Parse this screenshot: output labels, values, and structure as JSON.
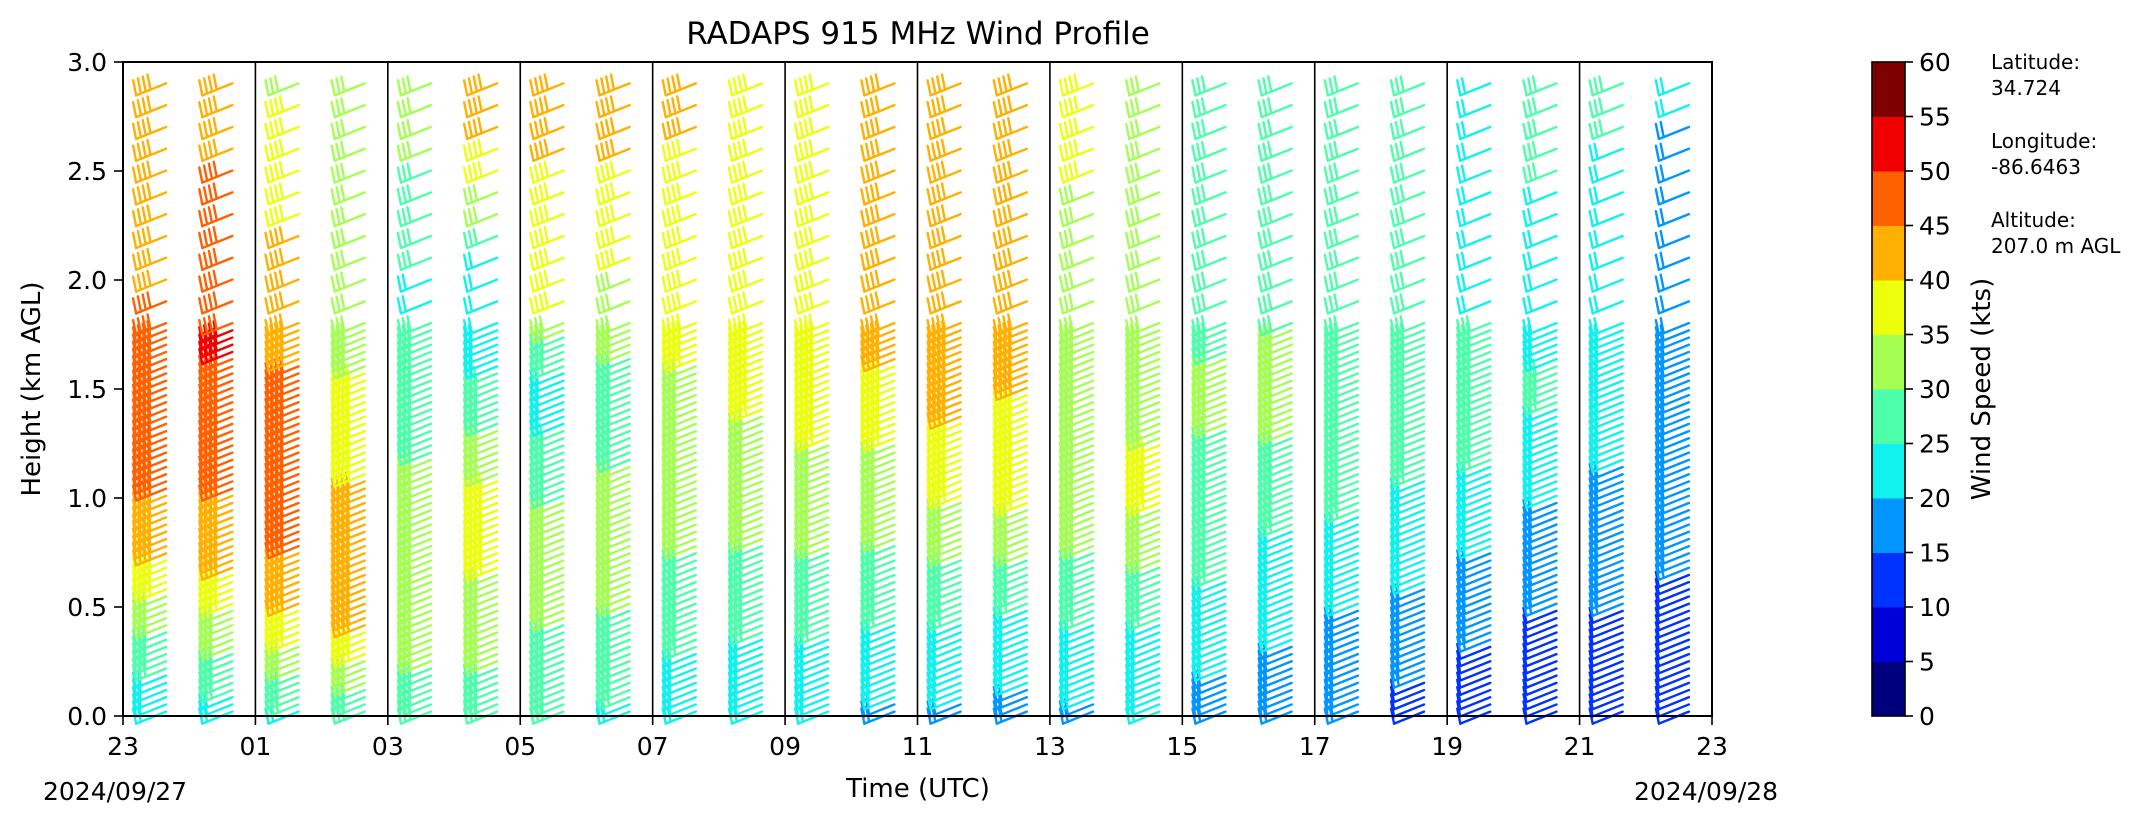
{
  "chart_data": {
    "type": "wind-barb-time-height",
    "title": "RADAPS 915 MHz Wind Profile",
    "xlabel": "Time (UTC)",
    "ylabel": "Height (km AGL)",
    "x_ticks": [
      "23",
      "01",
      "03",
      "05",
      "07",
      "09",
      "11",
      "13",
      "15",
      "17",
      "19",
      "21",
      "23"
    ],
    "x_tick_hours": [
      0,
      2,
      4,
      6,
      8,
      10,
      12,
      14,
      16,
      18,
      20,
      22,
      24
    ],
    "date_start": "2024/09/27",
    "date_end": "2024/09/28",
    "y_ticks": [
      "0.0",
      "0.5",
      "1.0",
      "1.5",
      "2.0",
      "2.5",
      "3.0"
    ],
    "ylim": [
      0,
      3
    ],
    "xlim_hours_since_start": [
      0,
      24
    ],
    "hour_dividers": true,
    "colorbar": {
      "label": "Wind Speed (kts)",
      "ticks": [
        "0",
        "5",
        "10",
        "15",
        "20",
        "25",
        "30",
        "35",
        "40",
        "45",
        "50",
        "55",
        "60"
      ],
      "colors": [
        "#00007f",
        "#0000d9",
        "#0033ff",
        "#0095ff",
        "#0ff2ee",
        "#4dffaa",
        "#a4ff53",
        "#ecff0b",
        "#ffb000",
        "#ff6000",
        "#f00000",
        "#7f0000"
      ]
    },
    "station": {
      "latitude_label": "Latitude:",
      "latitude": "34.724",
      "longitude_label": "Longitude:",
      "longitude": "-86.6463",
      "altitude_label": "Altitude:",
      "altitude": "207.0 m AGL"
    },
    "profile_columns_hours": [
      0.5,
      1.5,
      2.5,
      3.5,
      4.5,
      5.5,
      6.5,
      7.5,
      8.5,
      9.5,
      10.5,
      11.5,
      12.5,
      13.5,
      14.5,
      15.5,
      16.5,
      17.5,
      18.5,
      19.5,
      20.5,
      21.5,
      22.5,
      23.5
    ],
    "speed_profiles_kts": [
      [
        [
          0,
          20
        ],
        [
          0.5,
          33
        ],
        [
          0.8,
          42
        ],
        [
          1.1,
          46
        ],
        [
          1.6,
          46
        ],
        [
          2.0,
          45
        ],
        [
          3.0,
          40
        ]
      ],
      [
        [
          0,
          22
        ],
        [
          0.5,
          35
        ],
        [
          0.8,
          44
        ],
        [
          1.5,
          47
        ],
        [
          1.7,
          51
        ],
        [
          2.0,
          48
        ],
        [
          3.0,
          43
        ]
      ],
      [
        [
          0,
          24
        ],
        [
          0.5,
          40
        ],
        [
          0.8,
          46
        ],
        [
          1.5,
          46
        ],
        [
          2.0,
          42
        ],
        [
          3.0,
          34
        ]
      ],
      [
        [
          0,
          25
        ],
        [
          0.4,
          40
        ],
        [
          0.8,
          45
        ],
        [
          1.2,
          38
        ],
        [
          2.0,
          32
        ],
        [
          3.0,
          33
        ]
      ],
      [
        [
          0,
          26
        ],
        [
          0.5,
          34
        ],
        [
          1.0,
          32
        ],
        [
          1.5,
          27
        ],
        [
          2.0,
          24
        ],
        [
          3.0,
          34
        ]
      ],
      [
        [
          0,
          26
        ],
        [
          0.5,
          34
        ],
        [
          1.0,
          37
        ],
        [
          1.5,
          26
        ],
        [
          2.0,
          21
        ],
        [
          2.5,
          38
        ],
        [
          3.0,
          43
        ]
      ],
      [
        [
          0,
          25
        ],
        [
          0.5,
          31
        ],
        [
          1.0,
          30
        ],
        [
          1.5,
          22
        ],
        [
          1.9,
          35
        ],
        [
          3.0,
          44
        ]
      ],
      [
        [
          0,
          24
        ],
        [
          0.5,
          30
        ],
        [
          1.0,
          31
        ],
        [
          1.5,
          28
        ],
        [
          2.0,
          34
        ],
        [
          3.0,
          45
        ]
      ],
      [
        [
          0,
          20
        ],
        [
          0.5,
          28
        ],
        [
          1.0,
          32
        ],
        [
          1.5,
          34
        ],
        [
          2.0,
          38
        ],
        [
          3.0,
          41
        ]
      ],
      [
        [
          0,
          20
        ],
        [
          0.5,
          27
        ],
        [
          1.0,
          32
        ],
        [
          1.5,
          36
        ],
        [
          2.0,
          38
        ],
        [
          3.0,
          40
        ]
      ],
      [
        [
          0,
          20
        ],
        [
          0.5,
          27
        ],
        [
          1.0,
          33
        ],
        [
          1.5,
          37
        ],
        [
          2.0,
          38
        ],
        [
          3.0,
          40
        ]
      ],
      [
        [
          0,
          19
        ],
        [
          0.5,
          26
        ],
        [
          1.0,
          33
        ],
        [
          1.5,
          37
        ],
        [
          1.8,
          44
        ],
        [
          2.0,
          40
        ],
        [
          3.0,
          44
        ]
      ],
      [
        [
          0,
          19
        ],
        [
          0.5,
          26
        ],
        [
          1.0,
          35
        ],
        [
          1.5,
          42
        ],
        [
          2.0,
          44
        ],
        [
          3.0,
          45
        ]
      ],
      [
        [
          0,
          18
        ],
        [
          0.5,
          25
        ],
        [
          1.0,
          36
        ],
        [
          1.5,
          40
        ],
        [
          2.0,
          40
        ],
        [
          3.0,
          42
        ]
      ],
      [
        [
          0,
          19
        ],
        [
          0.5,
          26
        ],
        [
          1.0,
          34
        ],
        [
          1.5,
          32
        ],
        [
          2.0,
          30
        ],
        [
          3.0,
          40
        ]
      ],
      [
        [
          0,
          20
        ],
        [
          0.5,
          26
        ],
        [
          1.0,
          36
        ],
        [
          1.5,
          34
        ],
        [
          2.0,
          30
        ],
        [
          3.0,
          34
        ]
      ],
      [
        [
          0,
          17
        ],
        [
          0.5,
          24
        ],
        [
          1.0,
          28
        ],
        [
          1.5,
          31
        ],
        [
          2.0,
          28
        ],
        [
          3.0,
          30
        ]
      ],
      [
        [
          0,
          16
        ],
        [
          0.5,
          22
        ],
        [
          1.0,
          26
        ],
        [
          1.5,
          33
        ],
        [
          2.0,
          28
        ],
        [
          3.0,
          28
        ]
      ],
      [
        [
          0,
          15
        ],
        [
          0.5,
          20
        ],
        [
          1.0,
          26
        ],
        [
          1.5,
          30
        ],
        [
          2.0,
          27
        ],
        [
          3.0,
          27
        ]
      ],
      [
        [
          0,
          13
        ],
        [
          0.5,
          19
        ],
        [
          1.0,
          24
        ],
        [
          1.5,
          30
        ],
        [
          2.0,
          26
        ],
        [
          3.0,
          27
        ]
      ],
      [
        [
          0,
          11
        ],
        [
          0.5,
          17
        ],
        [
          1.0,
          23
        ],
        [
          1.5,
          30
        ],
        [
          2.0,
          23
        ],
        [
          3.0,
          24
        ]
      ],
      [
        [
          0,
          10
        ],
        [
          0.5,
          15
        ],
        [
          1.0,
          20
        ],
        [
          1.5,
          26
        ],
        [
          2.0,
          22
        ],
        [
          3.0,
          28
        ]
      ],
      [
        [
          0,
          11
        ],
        [
          0.5,
          15
        ],
        [
          1.0,
          19
        ],
        [
          1.5,
          22
        ],
        [
          2.0,
          23
        ],
        [
          3.0,
          26
        ]
      ],
      [
        [
          0,
          11
        ],
        [
          0.5,
          14
        ],
        [
          1.0,
          17
        ],
        [
          1.5,
          20
        ],
        [
          2.0,
          19
        ],
        [
          2.5,
          17
        ],
        [
          3.0,
          23
        ]
      ]
    ]
  }
}
